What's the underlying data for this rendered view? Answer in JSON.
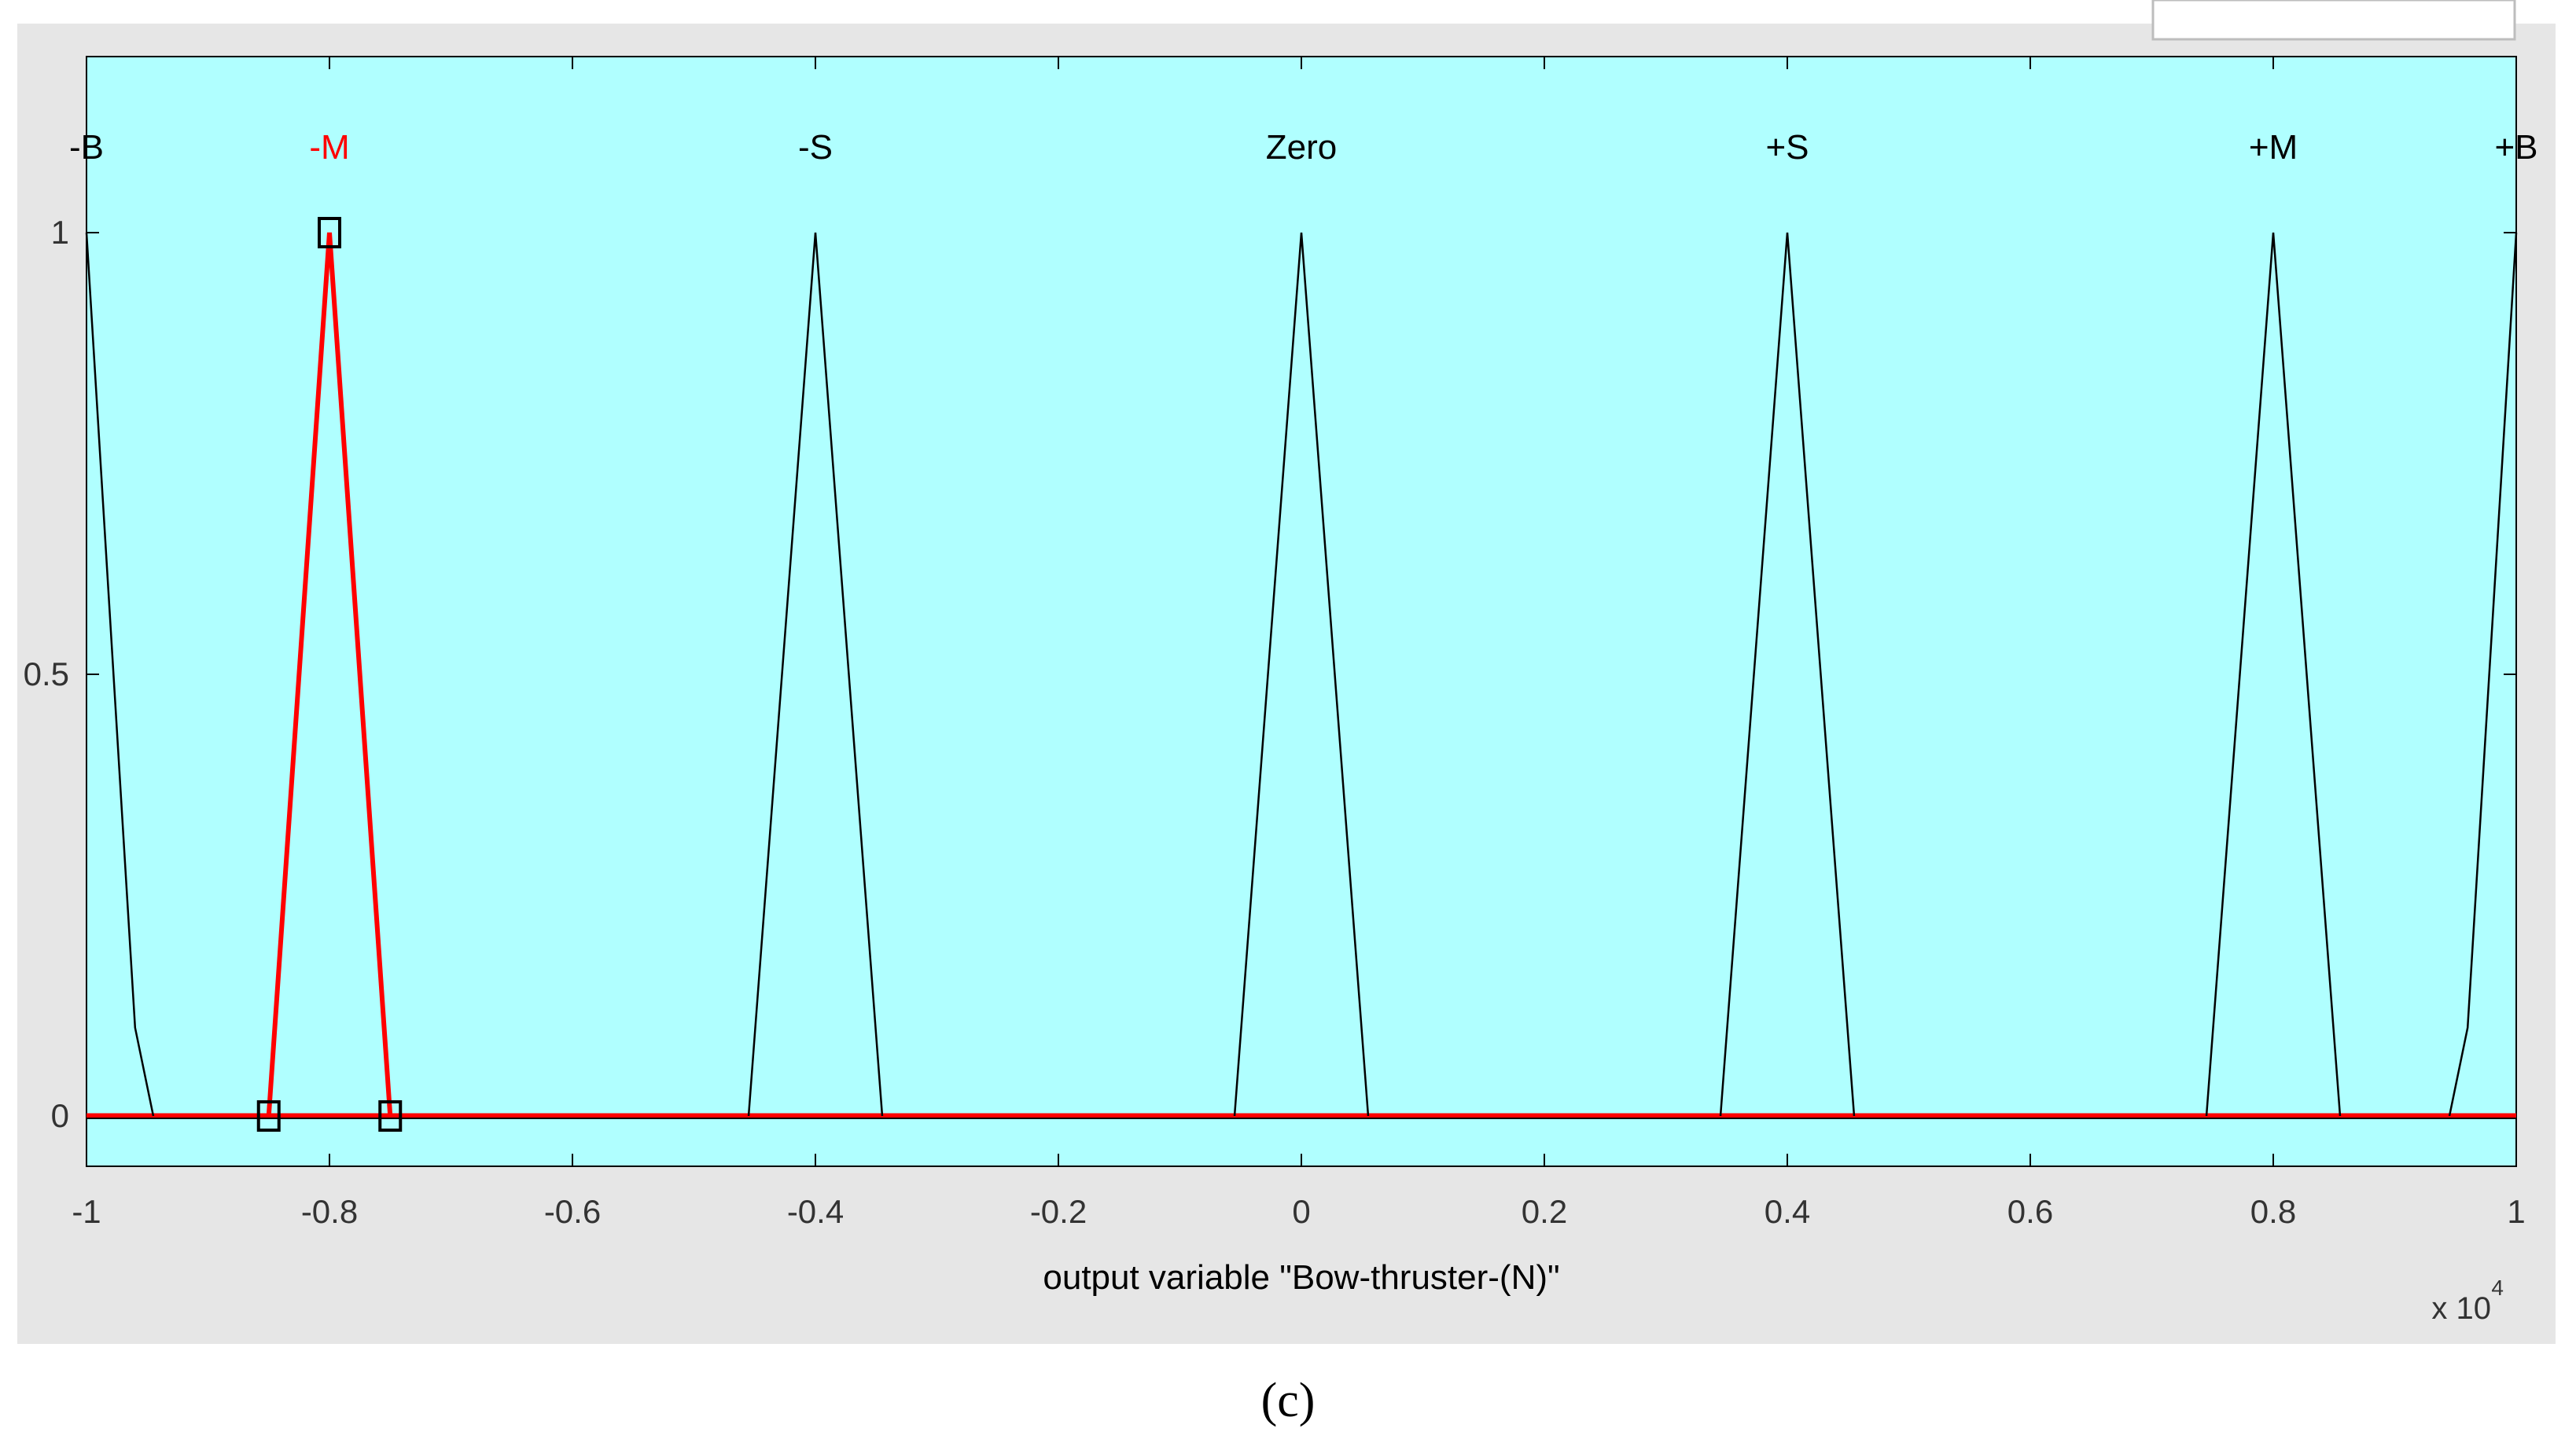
{
  "figure": {
    "panel_label": "(c)",
    "exponent_text": "x 10",
    "exponent_power": "4"
  },
  "colors": {
    "window_bg": "#e6e6e6",
    "plot_bg": "#b0ffff",
    "selected": "#ff0000",
    "normal": "#000000"
  },
  "chart_data": {
    "type": "line",
    "xlabel": "output variable \"Bow-thruster-(N)\"",
    "ylabel": "",
    "xlim": [
      -1,
      1
    ],
    "ylim": [
      -0.05,
      1.2
    ],
    "x_scale_note": "x 10^4",
    "x_ticks": [
      "-1",
      "-0.8",
      "-0.6",
      "-0.4",
      "-0.2",
      "0",
      "0.2",
      "0.4",
      "0.6",
      "0.8",
      "1"
    ],
    "y_ticks": [
      "0",
      "0.5",
      "1"
    ],
    "grid": false,
    "selected_series": "-M",
    "series": [
      {
        "name": "-B",
        "shape": "trapmf-left",
        "points": [
          [
            -1,
            1
          ],
          [
            -0.96,
            0.1
          ],
          [
            -0.945,
            0
          ]
        ]
      },
      {
        "name": "-M",
        "shape": "trimf",
        "points": [
          [
            -0.85,
            0
          ],
          [
            -0.8,
            1
          ],
          [
            -0.75,
            0
          ]
        ]
      },
      {
        "name": "-S",
        "shape": "trimf",
        "points": [
          [
            -0.455,
            0
          ],
          [
            -0.4,
            1
          ],
          [
            -0.345,
            0
          ]
        ]
      },
      {
        "name": "Zero",
        "shape": "trimf",
        "points": [
          [
            -0.055,
            0
          ],
          [
            0,
            1
          ],
          [
            0.055,
            0
          ]
        ]
      },
      {
        "name": "+S",
        "shape": "trimf",
        "points": [
          [
            0.345,
            0
          ],
          [
            0.4,
            1
          ],
          [
            0.455,
            0
          ]
        ]
      },
      {
        "name": "+M",
        "shape": "trimf",
        "points": [
          [
            0.745,
            0
          ],
          [
            0.8,
            1
          ],
          [
            0.855,
            0
          ]
        ]
      },
      {
        "name": "+B",
        "shape": "trapmf-right",
        "points": [
          [
            0.945,
            0
          ],
          [
            0.96,
            0.1
          ],
          [
            1,
            1
          ]
        ]
      }
    ]
  }
}
